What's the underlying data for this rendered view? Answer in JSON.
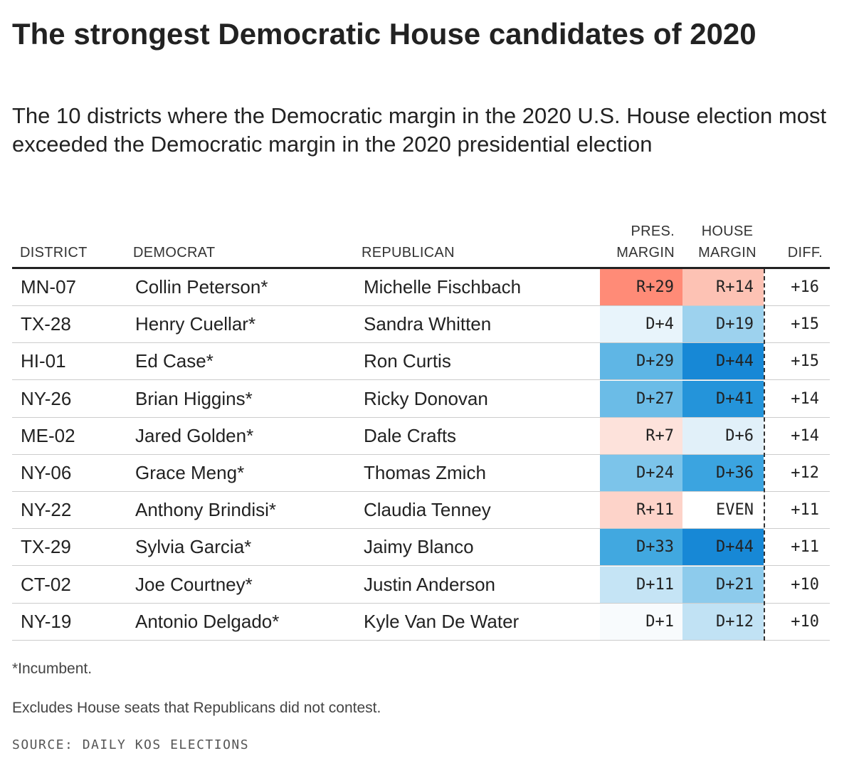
{
  "title": "The strongest Democratic House candidates of 2020",
  "subtitle": "The 10 districts where the Democratic margin in the 2020 U.S. House election most exceeded the Democratic margin in the 2020 presidential election",
  "headers": {
    "district": "DISTRICT",
    "democrat": "DEMOCRAT",
    "republican": "REPUBLICAN",
    "pres_margin_line1": "PRES.",
    "pres_margin_line2": "MARGIN",
    "house_margin_line1": "HOUSE",
    "house_margin_line2": "MARGIN",
    "diff": "DIFF."
  },
  "chart_data": {
    "type": "table",
    "columns": [
      "DISTRICT",
      "DEMOCRAT",
      "REPUBLICAN",
      "PRES. MARGIN",
      "HOUSE MARGIN",
      "DIFF."
    ],
    "rows": [
      {
        "district": "MN-07",
        "democrat": "Collin Peterson*",
        "republican": "Michelle Fischbach",
        "pres": "R+29",
        "house": "R+14",
        "diff": "+16",
        "pres_color": "#ff8b77",
        "house_color": "#fdc2b4"
      },
      {
        "district": "TX-28",
        "democrat": "Henry Cuellar*",
        "republican": "Sandra Whitten",
        "pres": "D+4",
        "house": "D+19",
        "diff": "+15",
        "pres_color": "#e8f4fb",
        "house_color": "#9dd2ee"
      },
      {
        "district": "HI-01",
        "democrat": "Ed Case*",
        "republican": "Ron Curtis",
        "pres": "D+29",
        "house": "D+44",
        "diff": "+15",
        "pres_color": "#5fb6e5",
        "house_color": "#1788d6"
      },
      {
        "district": "NY-26",
        "democrat": "Brian Higgins*",
        "republican": "Ricky Donovan",
        "pres": "D+27",
        "house": "D+41",
        "diff": "+14",
        "pres_color": "#6bbce7",
        "house_color": "#2494da"
      },
      {
        "district": "ME-02",
        "democrat": "Jared Golden*",
        "republican": "Dale Crafts",
        "pres": "R+7",
        "house": "D+6",
        "diff": "+14",
        "pres_color": "#fde2db",
        "house_color": "#e1f0f9"
      },
      {
        "district": "NY-06",
        "democrat": "Grace Meng*",
        "republican": "Thomas Zmich",
        "pres": "D+24",
        "house": "D+36",
        "diff": "+12",
        "pres_color": "#7cc4ea",
        "house_color": "#3ba4e0"
      },
      {
        "district": "NY-22",
        "democrat": "Anthony Brindisi*",
        "republican": "Claudia Tenney",
        "pres": "R+11",
        "house": "EVEN",
        "diff": "+11",
        "pres_color": "#fdd3c9",
        "house_color": "#ffffff"
      },
      {
        "district": "TX-29",
        "democrat": "Sylvia Garcia*",
        "republican": "Jaimy Blanco",
        "pres": "D+33",
        "house": "D+44",
        "diff": "+11",
        "pres_color": "#41a8e0",
        "house_color": "#1788d6"
      },
      {
        "district": "CT-02",
        "democrat": "Joe Courtney*",
        "republican": "Justin Anderson",
        "pres": "D+11",
        "house": "D+21",
        "diff": "+10",
        "pres_color": "#c5e4f5",
        "house_color": "#8dcbec"
      },
      {
        "district": "NY-19",
        "democrat": "Antonio Delgado*",
        "republican": "Kyle Van De Water",
        "pres": "D+1",
        "house": "D+12",
        "diff": "+10",
        "pres_color": "#f8fbfd",
        "house_color": "#c1e2f4"
      }
    ]
  },
  "footnotes": {
    "incumbent": "*Incumbent.",
    "excludes": "Excludes House seats that Republicans did not contest."
  },
  "source": "SOURCE: DAILY KOS ELECTIONS"
}
